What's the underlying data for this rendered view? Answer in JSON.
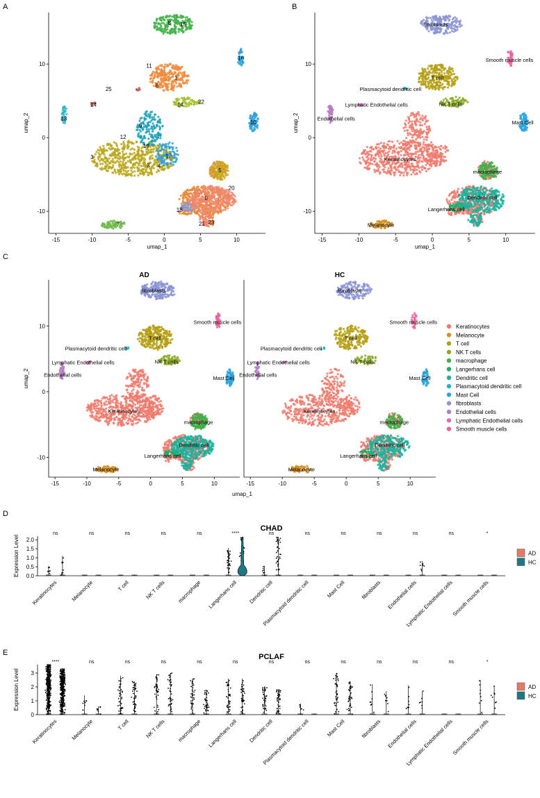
{
  "panel_labels": {
    "a": "A",
    "b": "B",
    "c": "C",
    "d": "D",
    "e": "E"
  },
  "colors": {
    "Keratinocytes": "#ef7b6f",
    "Melanocyte": "#d6911e",
    "T cell": "#b59f12",
    "NK T cells": "#8aaa22",
    "macrophage": "#3fb049",
    "Langerhans cell": "#17ad67",
    "Dendritic cell": "#18b39e",
    "Plasmacytoid dendritic cell": "#22b3c7",
    "Mast Cell": "#2aa4dd",
    "fibroblasts": "#8b94d4",
    "Endothelial cells": "#b47cc0",
    "Lymphatic Endothelial cells": "#d06fc1",
    "Smooth muscle cells": "#e8669c",
    "AD": "#e57a66",
    "HC": "#1d7884"
  },
  "chart_data": [
    {
      "id": "A",
      "type": "scatter",
      "xlabel": "umap_1",
      "ylabel": "umap_2",
      "xlim": [
        -16,
        14
      ],
      "ylim": [
        -13,
        17
      ],
      "xticks": [
        -15,
        -10,
        -5,
        0,
        5,
        10
      ],
      "yticks": [
        -10,
        0,
        10
      ],
      "xtick_labels": [
        "-15",
        "-10",
        "-5",
        "0",
        "5",
        "10"
      ],
      "ytick_labels": [
        "-10",
        "0",
        "10"
      ],
      "cluster_labels": [
        {
          "text": "0",
          "x": 5.8,
          "y": -8.2
        },
        {
          "text": "1",
          "x": 1.6,
          "y": 8.2
        },
        {
          "text": "2",
          "x": -2.2,
          "y": -3.7
        },
        {
          "text": "3",
          "x": -10,
          "y": -2.6
        },
        {
          "text": "4",
          "x": -0.7,
          "y": -3.8
        },
        {
          "text": "5",
          "x": 7.7,
          "y": -4.4
        },
        {
          "text": "6",
          "x": -1,
          "y": 7.1
        },
        {
          "text": "7",
          "x": -6.4,
          "y": -11.8
        },
        {
          "text": "8",
          "x": 0.7,
          "y": 15.6
        },
        {
          "text": "9",
          "x": -3.3,
          "y": 1.6
        },
        {
          "text": "10",
          "x": 12.3,
          "y": 2.1
        },
        {
          "text": "11",
          "x": -2.1,
          "y": 9.8
        },
        {
          "text": "12",
          "x": -5.7,
          "y": 0.1
        },
        {
          "text": "13",
          "x": -13.9,
          "y": 2.6
        },
        {
          "text": "14",
          "x": 2.2,
          "y": 4.5
        },
        {
          "text": "15",
          "x": 2.6,
          "y": 15.4
        },
        {
          "text": "16",
          "x": 10.6,
          "y": 10.8
        },
        {
          "text": "17",
          "x": 0.6,
          "y": -2.5
        },
        {
          "text": "18",
          "x": 2.1,
          "y": -9.8
        },
        {
          "text": "19",
          "x": -2.5,
          "y": -1.1
        },
        {
          "text": "20",
          "x": 9.3,
          "y": -6.8
        },
        {
          "text": "21",
          "x": 5.2,
          "y": -11.7
        },
        {
          "text": "22",
          "x": 5.1,
          "y": 4.9
        },
        {
          "text": "23",
          "x": 6.5,
          "y": -11.5
        },
        {
          "text": "24",
          "x": -9.8,
          "y": 4.5
        },
        {
          "text": "25",
          "x": -7.7,
          "y": 6.6
        }
      ]
    },
    {
      "id": "B",
      "type": "scatter",
      "xlabel": "umap_1",
      "ylabel": "umap_2",
      "xlim": [
        -16,
        14
      ],
      "ylim": [
        -13,
        17
      ],
      "xticks": [
        -15,
        -10,
        -5,
        0,
        5,
        10
      ],
      "yticks": [
        -10,
        0,
        10
      ],
      "xtick_labels": [
        "-15",
        "-10",
        "-5",
        "0",
        "5",
        "10"
      ],
      "ytick_labels": [
        "-10",
        "0",
        "10"
      ],
      "cell_labels": [
        {
          "text": "fibroblasts",
          "x": 0.5,
          "y": 15.4
        },
        {
          "text": "Smooth muscle cells",
          "x": 10.5,
          "y": 10.6
        },
        {
          "text": "T cell",
          "x": 0.7,
          "y": 8.2
        },
        {
          "text": "Plasmacytoid dendritic cell",
          "x": -5.7,
          "y": 6.6
        },
        {
          "text": "Lymphatic Endothelial cells",
          "x": -7.6,
          "y": 4.5
        },
        {
          "text": "NK T cells",
          "x": 2.5,
          "y": 4.6
        },
        {
          "text": "Endothelial cells",
          "x": -13.1,
          "y": 2.6
        },
        {
          "text": "Mast Cell",
          "x": 12.3,
          "y": 2.1
        },
        {
          "text": "Keratinocytes",
          "x": -4.4,
          "y": -2.9
        },
        {
          "text": "macrophage",
          "x": 7.5,
          "y": -4.6
        },
        {
          "text": "Dendritic cell",
          "x": 6.8,
          "y": -8.1
        },
        {
          "text": "Langerhans cell",
          "x": 1.9,
          "y": -9.7
        },
        {
          "text": "Melanocyte",
          "x": -7,
          "y": -11.8
        }
      ]
    },
    {
      "id": "C",
      "type": "scatter",
      "xlabel": "umap_1",
      "ylabel": "umap_2",
      "xlim": [
        -16,
        14
      ],
      "ylim": [
        -13,
        17
      ],
      "xticks": [
        -15,
        -10,
        -5,
        0,
        5,
        10
      ],
      "yticks": [
        -10,
        0,
        10
      ],
      "xtick_labels": [
        "-15",
        "-10",
        "-5",
        "0",
        "5",
        "10"
      ],
      "ytick_labels": [
        "-10",
        "0",
        "10"
      ],
      "facets": [
        "AD",
        "HC"
      ],
      "legend": [
        "Keratinocytes",
        "Melanocyte",
        "T cell",
        "NK T cells",
        "macrophage",
        "Langerhans cell",
        "Dendritic cell",
        "Plasmacytoid dendritic cell",
        "Mast Cell",
        "fibroblasts",
        "Endothelial cells",
        "Lymphatic Endothelial cells",
        "Smooth muscle cells"
      ],
      "cell_labels": [
        {
          "text": "fibroblasts",
          "x": 0.5,
          "y": 15.4
        },
        {
          "text": "Smooth muscle cells",
          "x": 10.5,
          "y": 10.6
        },
        {
          "text": "T cell",
          "x": 0.7,
          "y": 8.2
        },
        {
          "text": "Plasmacytoid dendritic cell",
          "x": -8.6,
          "y": 6.6
        },
        {
          "text": "Lymphatic Endothelial cells",
          "x": -10.6,
          "y": 4.5
        },
        {
          "text": "NK T cells",
          "x": 2.5,
          "y": 4.6
        },
        {
          "text": "Endothelial cells",
          "x": -13.8,
          "y": 2.6
        },
        {
          "text": "Mast Cell",
          "x": 11.5,
          "y": 2.1
        },
        {
          "text": "Keratinocytes",
          "x": -4.2,
          "y": -2.9
        },
        {
          "text": "macrophage",
          "x": 7.5,
          "y": -4.6
        },
        {
          "text": "Dendritic cell",
          "x": 6.8,
          "y": -8.1
        },
        {
          "text": "Langerhans cell",
          "x": 1.9,
          "y": -9.7
        },
        {
          "text": "Melanocyte",
          "x": -7,
          "y": -11.8
        }
      ]
    },
    {
      "id": "D",
      "type": "violin",
      "title": "CHAD",
      "ylabel": "Expression Level",
      "ylim": [
        0,
        2.2
      ],
      "yticks": [
        0,
        0.5,
        1,
        1.5,
        2
      ],
      "ytick_labels": [
        "0.0",
        "0.5",
        "1.0",
        "1.5",
        "2.0"
      ],
      "legend": [
        "AD",
        "HC"
      ],
      "categories": [
        "Keratinocytes",
        "Melanocyte",
        "T cell",
        "NK T cells",
        "macrophage",
        "Langerhans cell",
        "Dendritic cell",
        "Plasmacytoid dendritic cell",
        "Mast Cell",
        "fibroblasts",
        "Endothelial cells",
        "Lymphatic Endothelial cells",
        "Smooth muscle cells"
      ],
      "significance": [
        "ns",
        "ns",
        "ns",
        "ns",
        "ns",
        "****",
        "ns",
        "ns",
        "ns",
        "ns",
        "ns",
        "ns",
        "*"
      ],
      "max_AD": [
        0.55,
        0,
        0,
        0,
        0,
        1.55,
        0.55,
        0,
        0,
        0,
        0,
        0,
        0
      ],
      "max_HC": [
        1.1,
        0,
        0,
        0,
        0,
        2.15,
        2.15,
        0,
        0,
        0,
        0.82,
        0,
        0
      ]
    },
    {
      "id": "E",
      "type": "violin",
      "title": "PCLAF",
      "ylabel": "Expression Level",
      "ylim": [
        0,
        3.6
      ],
      "yticks": [
        0,
        1,
        2,
        3
      ],
      "ytick_labels": [
        "0",
        "1",
        "2",
        "3"
      ],
      "legend": [
        "AD",
        "HC"
      ],
      "categories": [
        "Keratinocytes",
        "Melanocyte",
        "T cell",
        "NK T cells",
        "macrophage",
        "Langerhans cell",
        "Dendritic cell",
        "Plasmacytoid dendritic cell",
        "Mast Cell",
        "fibroblasts",
        "Endothelial cells",
        "Lymphatic Endothelial cells",
        "Smooth muscle cells"
      ],
      "significance": [
        "****",
        "ns",
        "ns",
        "ns",
        "ns",
        "ns",
        "ns",
        "ns",
        "ns",
        "ns",
        "ns",
        "ns",
        "*"
      ],
      "max_AD": [
        3.6,
        1.4,
        2.8,
        2.9,
        2.6,
        2.6,
        2.0,
        0.8,
        3.0,
        2.2,
        2.1,
        0,
        2.5
      ],
      "max_HC": [
        3.3,
        0.6,
        2.4,
        3.0,
        1.8,
        2.6,
        1.8,
        0,
        2.4,
        1.7,
        1.7,
        0,
        2.1
      ]
    }
  ]
}
